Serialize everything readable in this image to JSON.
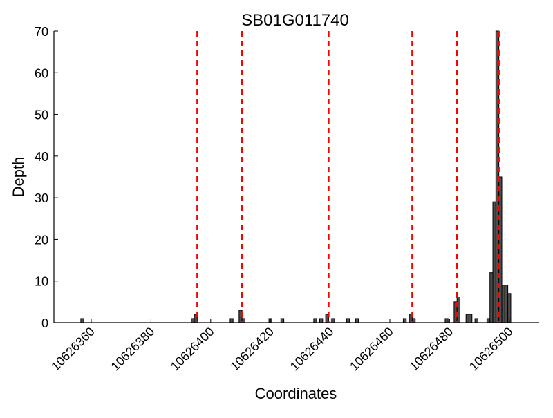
{
  "chart_data": {
    "type": "bar",
    "title": "SB01G011740",
    "xlabel": "Coordinates",
    "ylabel": "Depth",
    "xlim": [
      10626347.5,
      10626510
    ],
    "ylim": [
      0,
      70
    ],
    "xticks": [
      10626360,
      10626380,
      10626400,
      10626420,
      10626440,
      10626460,
      10626480,
      10626500
    ],
    "yticks": [
      0,
      10,
      20,
      30,
      40,
      50,
      60,
      70
    ],
    "grid": false,
    "bar_color": "#4d4d4d",
    "line_color": "#ff0000",
    "bars": [
      {
        "x": 10626357,
        "y": 1
      },
      {
        "x": 10626394,
        "y": 1
      },
      {
        "x": 10626395,
        "y": 2
      },
      {
        "x": 10626407,
        "y": 1
      },
      {
        "x": 10626410,
        "y": 3
      },
      {
        "x": 10626411,
        "y": 1
      },
      {
        "x": 10626420,
        "y": 1
      },
      {
        "x": 10626424,
        "y": 1
      },
      {
        "x": 10626435,
        "y": 1
      },
      {
        "x": 10626437,
        "y": 1
      },
      {
        "x": 10626439,
        "y": 2
      },
      {
        "x": 10626441,
        "y": 1
      },
      {
        "x": 10626446,
        "y": 1
      },
      {
        "x": 10626449,
        "y": 1
      },
      {
        "x": 10626465,
        "y": 1
      },
      {
        "x": 10626467,
        "y": 2
      },
      {
        "x": 10626468,
        "y": 1
      },
      {
        "x": 10626479,
        "y": 1
      },
      {
        "x": 10626482,
        "y": 5
      },
      {
        "x": 10626483,
        "y": 6
      },
      {
        "x": 10626486,
        "y": 2
      },
      {
        "x": 10626487,
        "y": 2
      },
      {
        "x": 10626489,
        "y": 1
      },
      {
        "x": 10626493,
        "y": 1
      },
      {
        "x": 10626494,
        "y": 12
      },
      {
        "x": 10626495,
        "y": 29
      },
      {
        "x": 10626496,
        "y": 70
      },
      {
        "x": 10626497,
        "y": 35
      },
      {
        "x": 10626498,
        "y": 9
      },
      {
        "x": 10626499,
        "y": 9
      },
      {
        "x": 10626500,
        "y": 7
      }
    ],
    "vlines": [
      10626395.5,
      10626410.5,
      10626439.5,
      10626467.5,
      10626482.5,
      10626496.5
    ]
  }
}
